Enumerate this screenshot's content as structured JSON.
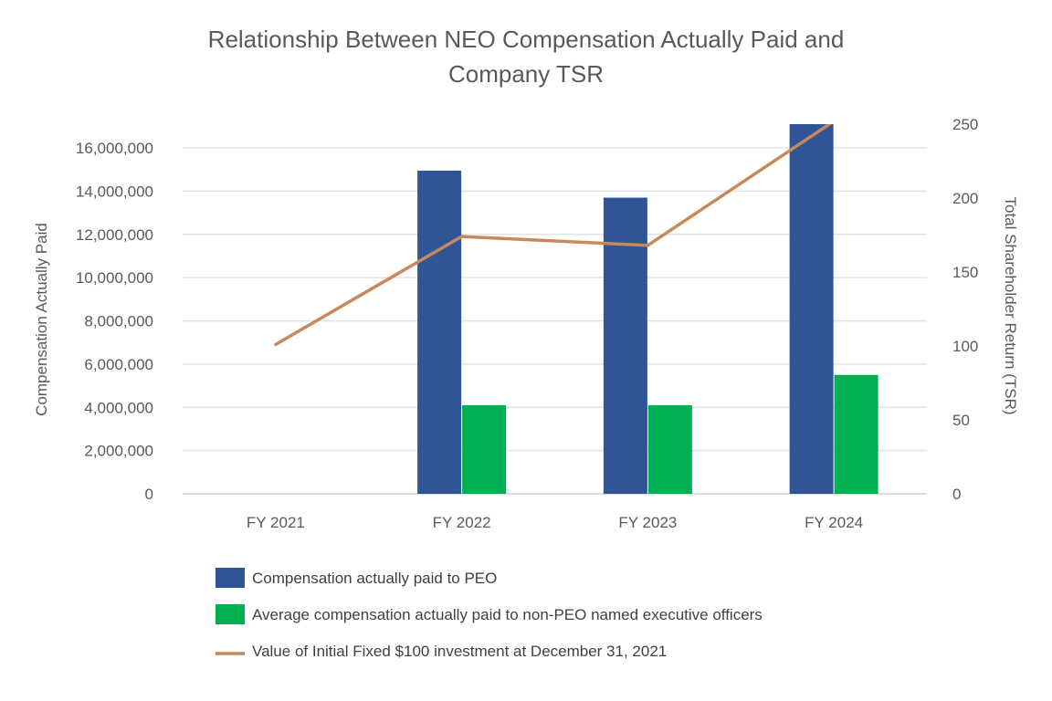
{
  "chart_data": {
    "type": "bar",
    "title_lines": [
      "Relationship Between NEO Compensation Actually Paid and",
      "Company TSR"
    ],
    "categories": [
      "FY 2021",
      "FY 2022",
      "FY 2023",
      "FY 2024"
    ],
    "series": [
      {
        "name": "Compensation actually paid to PEO",
        "type": "bar",
        "axis": "left",
        "color": "#2F5597",
        "values": [
          0,
          14950000,
          13700000,
          17100000
        ]
      },
      {
        "name": "Average compensation actually paid to non-PEO named executive officers",
        "type": "bar",
        "axis": "left",
        "color": "#00B050",
        "values": [
          0,
          4100000,
          4100000,
          5500000
        ]
      },
      {
        "name": "Value of Initial Fixed $100 investment at December 31, 2021",
        "type": "line",
        "axis": "right",
        "color": "#C8895A",
        "values": [
          101,
          174,
          168,
          252
        ]
      }
    ],
    "ylabel": "Compensation Actually Paid",
    "y2label": "Total Shareholder Return (TSR)",
    "ylim": [
      0,
      17100000
    ],
    "y2lim": [
      0,
      250
    ],
    "yticks": [
      "0",
      "2,000,000",
      "4,000,000",
      "6,000,000",
      "8,000,000",
      "10,000,000",
      "12,000,000",
      "14,000,000",
      "16,000,000"
    ],
    "yticks_values": [
      0,
      2000000,
      4000000,
      6000000,
      8000000,
      10000000,
      12000000,
      14000000,
      16000000
    ],
    "y2ticks": [
      "0",
      "50",
      "100",
      "150",
      "200",
      "250"
    ],
    "y2ticks_values": [
      0,
      50,
      100,
      150,
      200,
      250
    ],
    "grid": true,
    "legend_position": "bottom-left"
  }
}
